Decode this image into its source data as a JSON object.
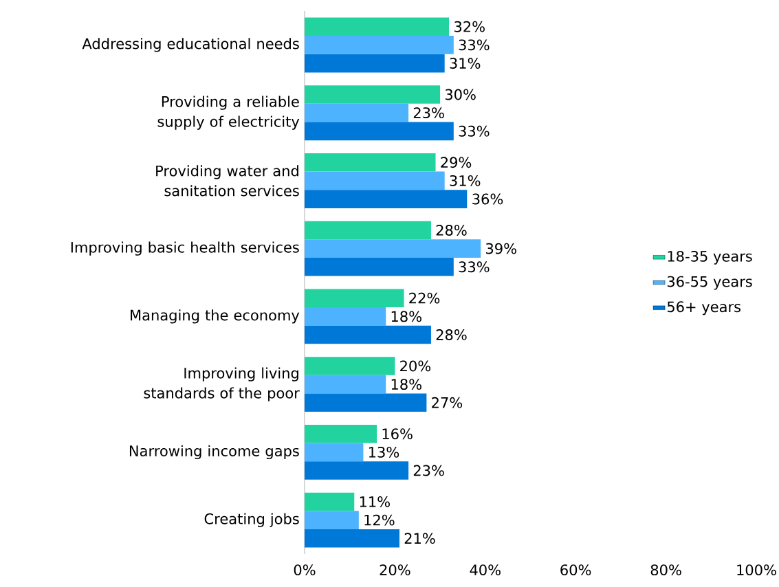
{
  "chart_data": {
    "type": "bar",
    "orientation": "horizontal",
    "categories": [
      "Addressing educational needs",
      "Providing a reliable supply of electricity",
      "Providing water and sanitation services",
      "Improving basic health services",
      "Managing the economy",
      "Improving living standards of the poor",
      "Narrowing income gaps",
      "Creating jobs"
    ],
    "series": [
      {
        "name": "18-35 years",
        "color": "#22d3a0",
        "values": [
          32,
          30,
          29,
          28,
          22,
          20,
          16,
          11
        ],
        "value_labels": [
          "32%",
          "30%",
          "29%",
          "28%",
          "22%",
          "20%",
          "16%",
          "11%"
        ]
      },
      {
        "name": "36-55 years",
        "color": "#4db3ff",
        "values": [
          33,
          23,
          31,
          39,
          18,
          18,
          13,
          12
        ],
        "value_labels": [
          "33%",
          "23%",
          "31%",
          "39%",
          "18%",
          "18%",
          "13%",
          "12%"
        ]
      },
      {
        "name": "56+ years",
        "color": "#0078d7",
        "values": [
          31,
          33,
          36,
          33,
          28,
          27,
          23,
          21
        ],
        "value_labels": [
          "31%",
          "33%",
          "36%",
          "33%",
          "28%",
          "27%",
          "23%",
          "21%"
        ]
      }
    ],
    "xlim": [
      0,
      100
    ],
    "xticks": [
      {
        "value": 0,
        "label": "0%"
      },
      {
        "value": 20,
        "label": "20%"
      },
      {
        "value": 40,
        "label": "40%"
      },
      {
        "value": 60,
        "label": "60%"
      },
      {
        "value": 80,
        "label": "80%"
      },
      {
        "value": 100,
        "label": "100%"
      }
    ],
    "legend": "right"
  }
}
